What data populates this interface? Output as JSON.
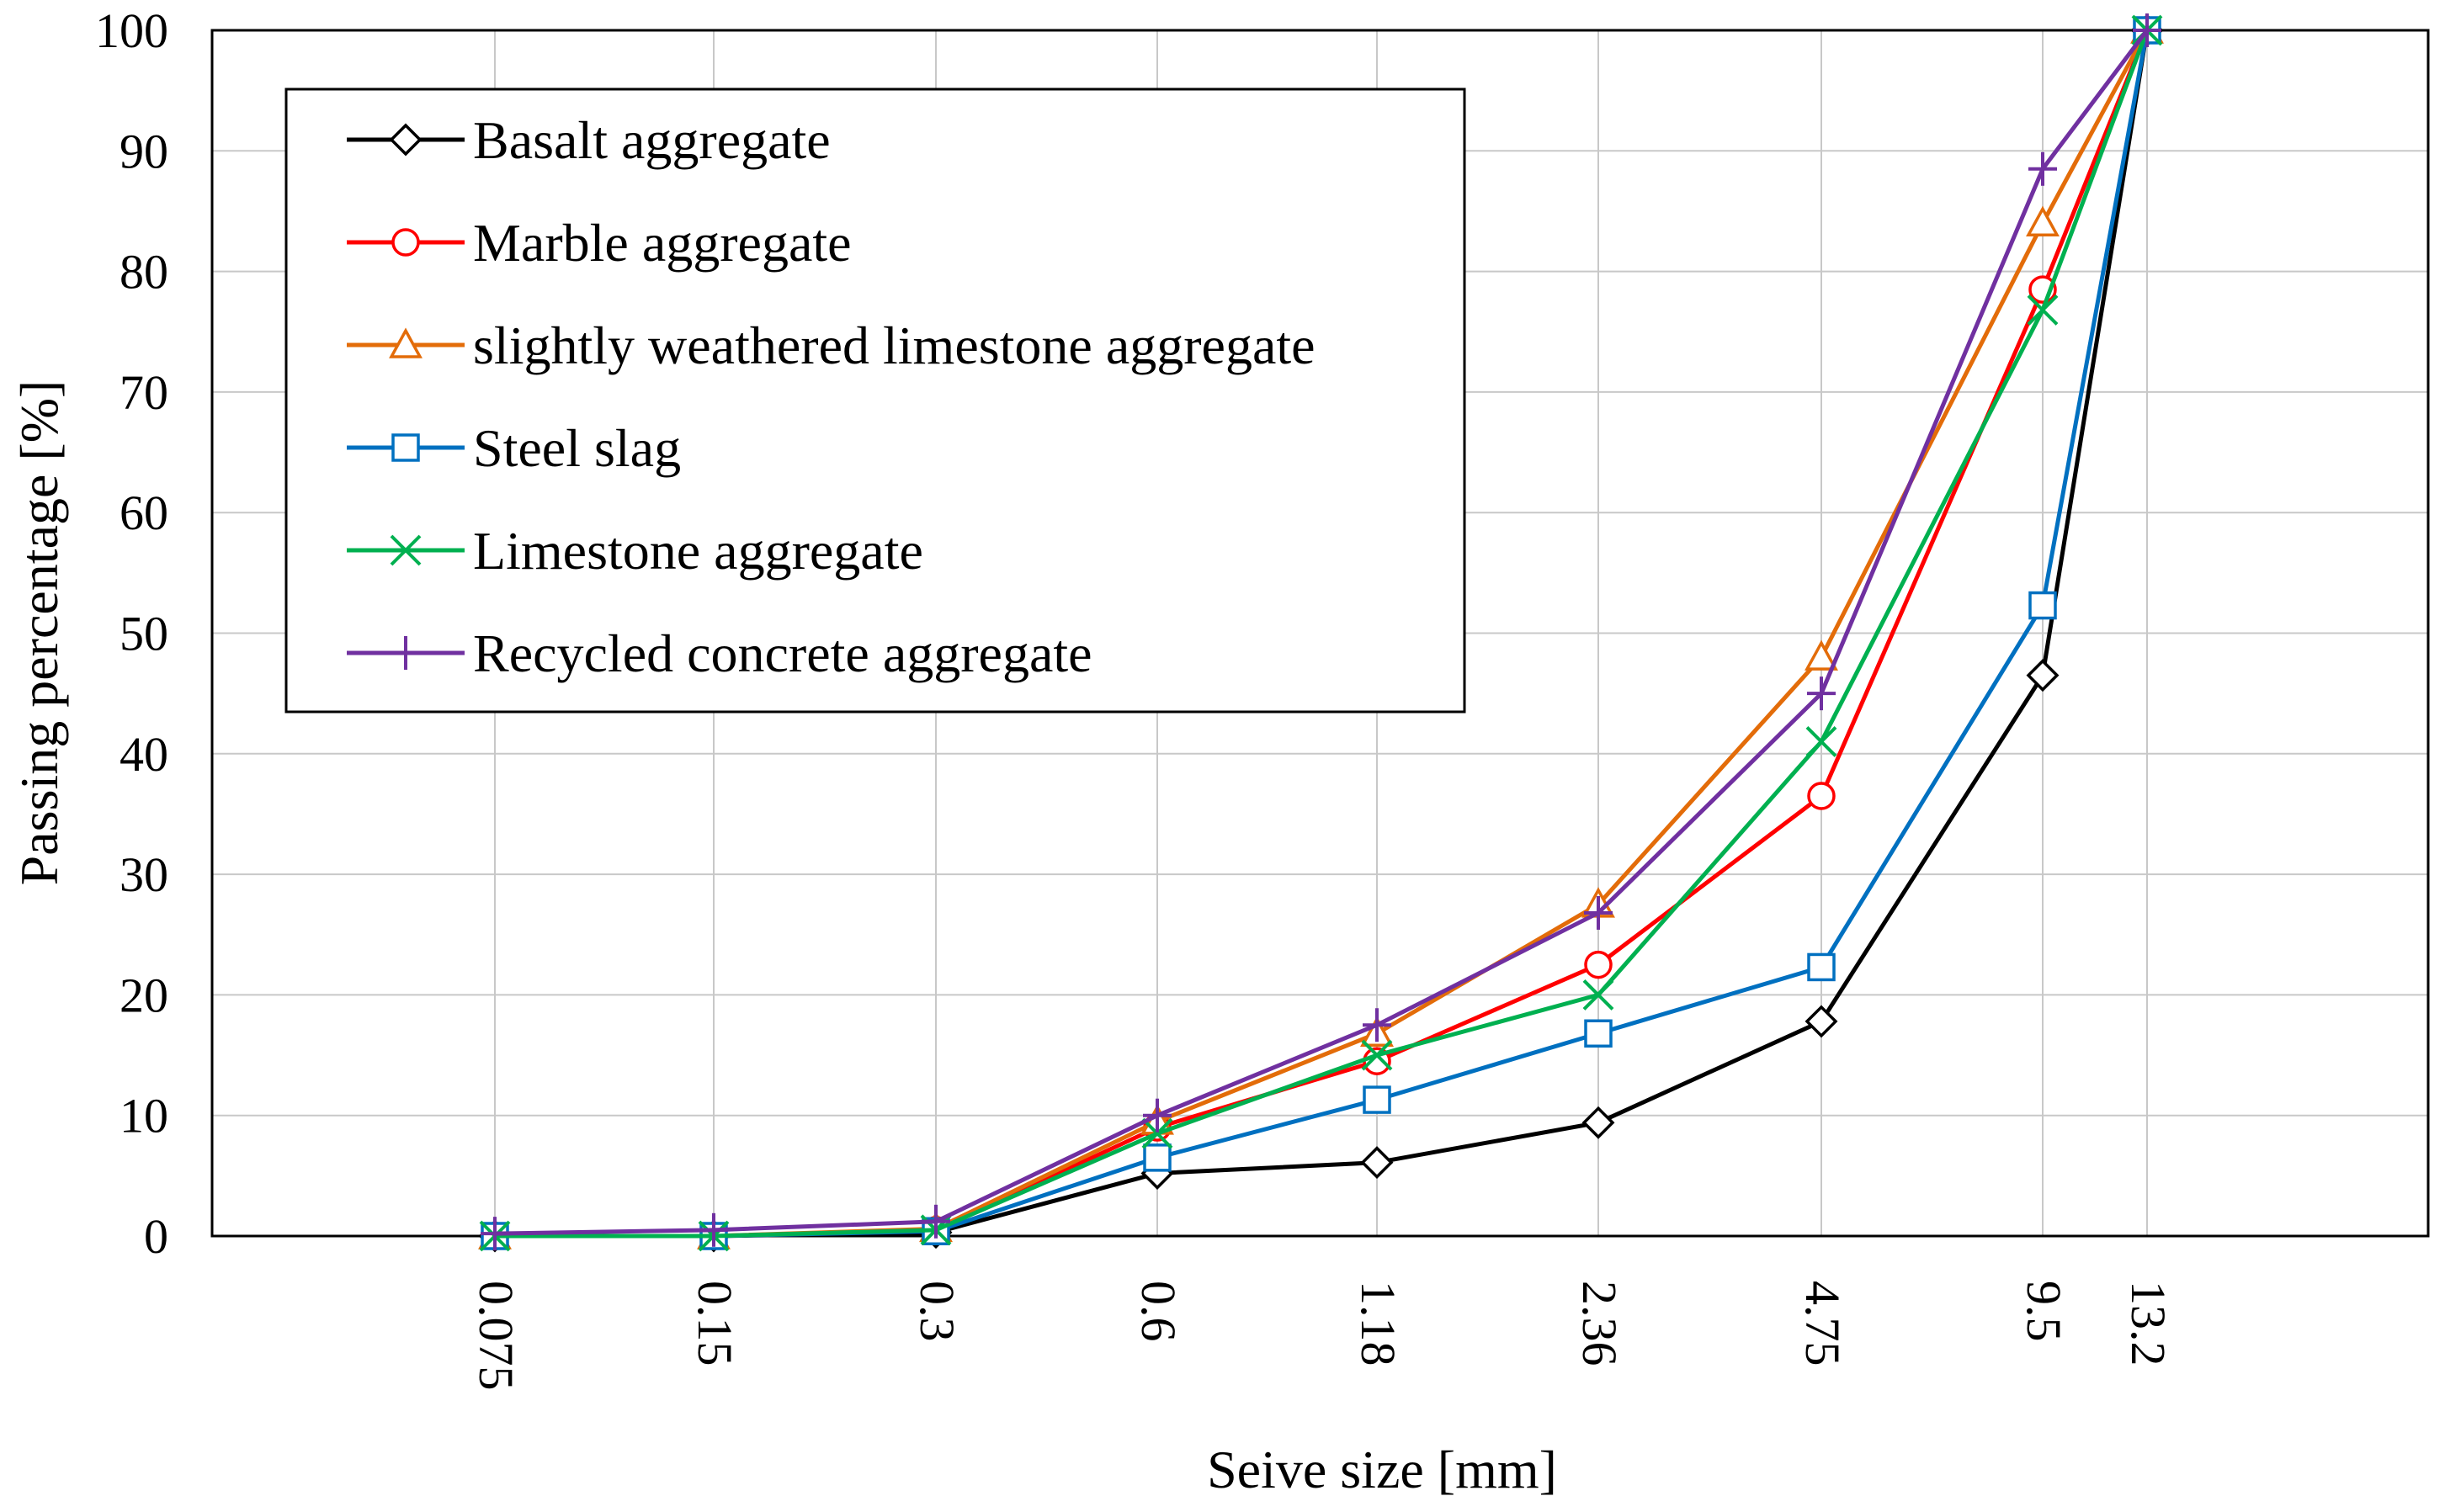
{
  "chart_data": {
    "type": "line",
    "title": "",
    "xlabel": "Seive size [mm]",
    "ylabel": "Passing percentage [%]",
    "categories": [
      "0.075",
      "0.15",
      "0.3",
      "0.6",
      "1.18",
      "2.36",
      "4.75",
      "9.5",
      "13.2"
    ],
    "ylim": [
      0,
      100
    ],
    "yticks": [
      "0",
      "10",
      "20",
      "30",
      "40",
      "50",
      "60",
      "70",
      "80",
      "90",
      "100"
    ],
    "grid": true,
    "legend_position": "top-left",
    "series": [
      {
        "name": "Basalt aggregate",
        "marker": "diamond",
        "color": "#000000",
        "values": [
          0,
          0,
          0.3,
          5.2,
          6.1,
          9.4,
          17.8,
          46.5,
          100
        ]
      },
      {
        "name": "Marble aggregate",
        "marker": "circle",
        "color": "#ff0000",
        "values": [
          0,
          0,
          0.5,
          9.0,
          14.5,
          22.5,
          36.5,
          78.5,
          100
        ]
      },
      {
        "name": "slightly weathered limestone aggregate",
        "marker": "triangle",
        "color": "#e36c09",
        "values": [
          0,
          0,
          0.6,
          9.5,
          16.8,
          27.5,
          48.0,
          84.0,
          100
        ]
      },
      {
        "name": "Steel slag",
        "marker": "square",
        "color": "#0070c0",
        "values": [
          0,
          0,
          0.4,
          6.5,
          11.3,
          16.8,
          22.3,
          52.3,
          100
        ]
      },
      {
        "name": "Limestone aggregate",
        "marker": "x",
        "color": "#00b050",
        "values": [
          0,
          0,
          0.5,
          8.5,
          15.0,
          20.0,
          41.0,
          76.8,
          100
        ]
      },
      {
        "name": "Recycled concrete aggregate",
        "marker": "plus",
        "color": "#7030a0",
        "values": [
          0.2,
          0.5,
          1.2,
          10.0,
          17.5,
          26.8,
          45.0,
          88.5,
          100
        ]
      }
    ]
  }
}
